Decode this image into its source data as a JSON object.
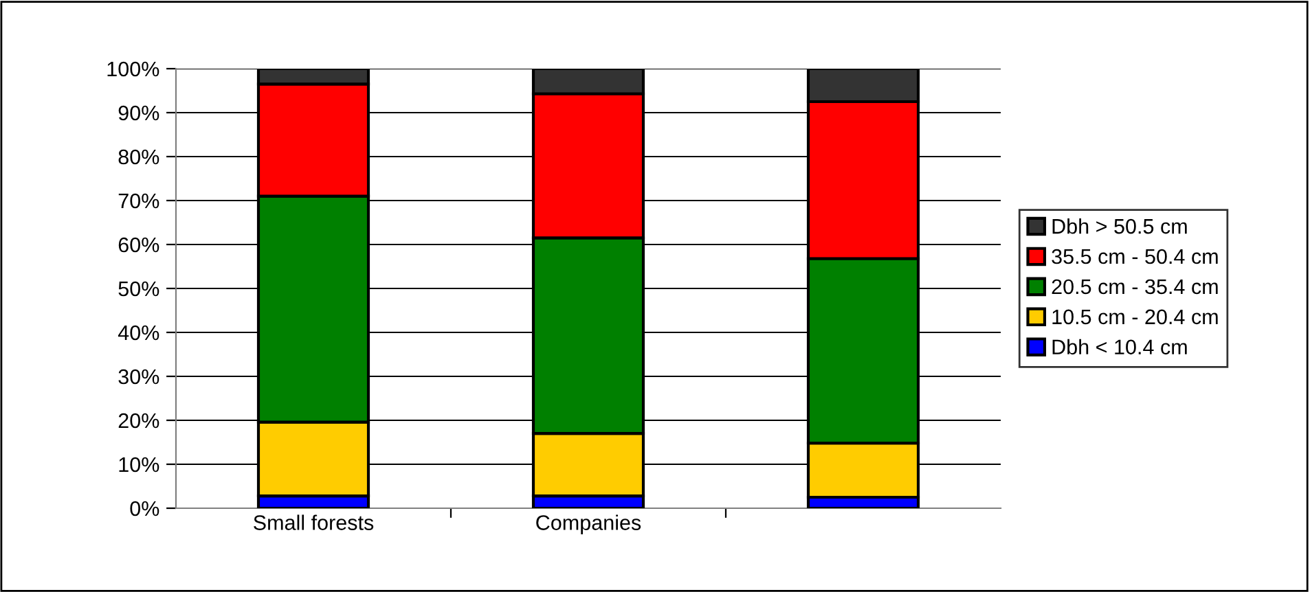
{
  "chart_data": {
    "type": "bar",
    "stacked": true,
    "categories": [
      "Small forests",
      "Companies",
      null
    ],
    "series": [
      {
        "name": "Dbh < 10.4 cm",
        "color": "#0000ff",
        "values": [
          2.8,
          2.8,
          2.5
        ]
      },
      {
        "name": "10.5 cm - 20.4 cm",
        "color": "#ffcc00",
        "values": [
          16.8,
          14.2,
          12.3
        ]
      },
      {
        "name": "20.5 cm - 35.4 cm",
        "color": "#008000",
        "values": [
          51.4,
          44.5,
          42.0
        ]
      },
      {
        "name": "35.5 cm - 50.4 cm",
        "color": "#ff0000",
        "values": [
          25.5,
          32.8,
          35.7
        ]
      },
      {
        "name": "Dbh > 50.5 cm",
        "color": "#333333",
        "values": [
          3.5,
          5.7,
          7.5
        ]
      }
    ],
    "ylim": [
      0,
      100
    ],
    "yticks": [
      {
        "value": 0,
        "label": "0%"
      },
      {
        "value": 10,
        "label": "10%"
      },
      {
        "value": 20,
        "label": "20%"
      },
      {
        "value": 30,
        "label": "30%"
      },
      {
        "value": 40,
        "label": "40%"
      },
      {
        "value": 50,
        "label": "50%"
      },
      {
        "value": 60,
        "label": "60%"
      },
      {
        "value": 70,
        "label": "70%"
      },
      {
        "value": 80,
        "label": "80%"
      },
      {
        "value": 90,
        "label": "90%"
      },
      {
        "value": 100,
        "label": "100%"
      }
    ],
    "grid": "y",
    "legend": "right"
  }
}
